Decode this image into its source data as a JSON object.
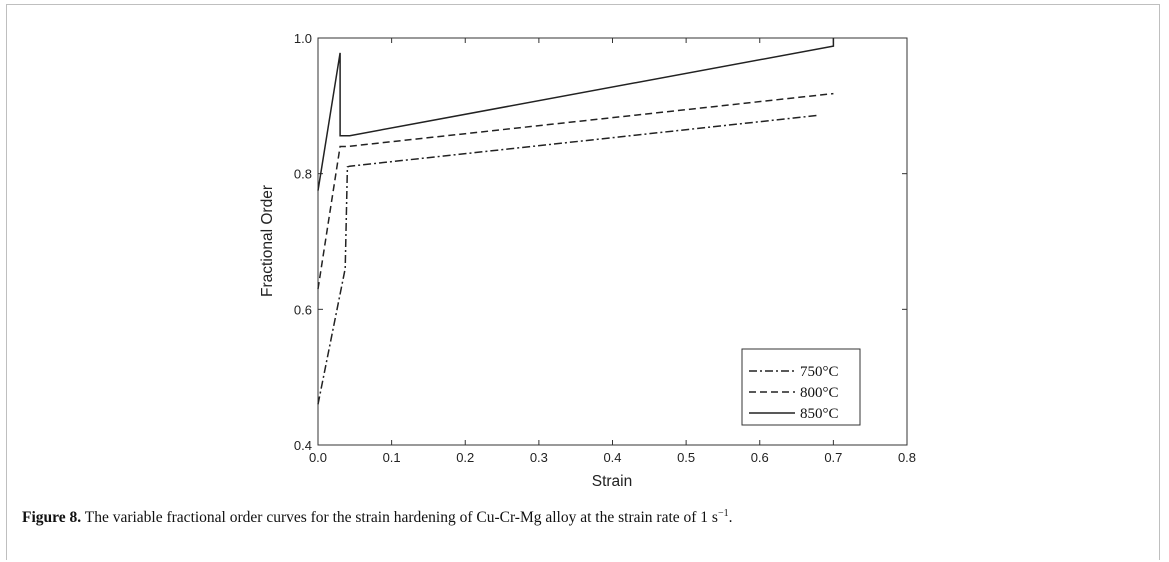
{
  "chart_data": {
    "type": "line",
    "xlabel": "Strain",
    "ylabel": "Fractional Order",
    "xlim": [
      0,
      0.8
    ],
    "ylim": [
      0.4,
      1.0
    ],
    "xticks": [
      "0.0",
      "0.1",
      "0.2",
      "0.3",
      "0.4",
      "0.5",
      "0.6",
      "0.7",
      "0.8"
    ],
    "yticks": [
      "0.4",
      "0.6",
      "0.8",
      "1.0"
    ],
    "grid": false,
    "legend_position": "bottom-right",
    "series": [
      {
        "name": "750°C",
        "style": "dashdot",
        "color": "#222222",
        "x": [
          0.0,
          0.037,
          0.04,
          0.043,
          0.68
        ],
        "y": [
          0.46,
          0.66,
          0.81,
          0.811,
          0.886
        ]
      },
      {
        "name": "800°C",
        "style": "dashed",
        "color": "#222222",
        "x": [
          0.0,
          0.03,
          0.04,
          0.7
        ],
        "y": [
          0.63,
          0.84,
          0.84,
          0.918
        ]
      },
      {
        "name": "850°C",
        "style": "solid",
        "color": "#222222",
        "x": [
          0.0,
          0.03,
          0.03,
          0.043,
          0.7,
          0.7
        ],
        "y": [
          0.775,
          0.978,
          0.856,
          0.856,
          0.988,
          1.0
        ]
      }
    ]
  },
  "caption": {
    "label": "Figure 8.",
    "text": " The variable fractional order curves for the strain hardening of Cu-Cr-Mg alloy at the strain rate of 1 s",
    "superscript": "−1",
    "end": "."
  }
}
